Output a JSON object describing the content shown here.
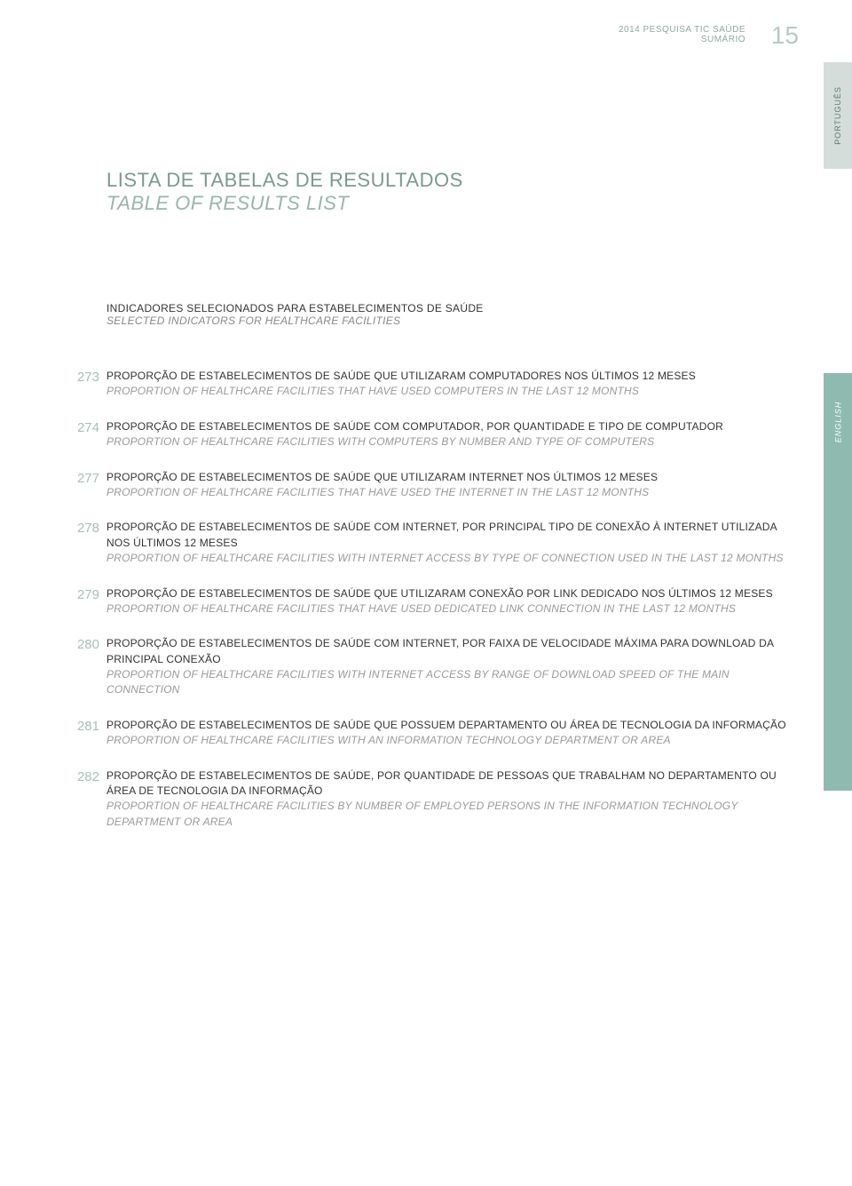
{
  "header": {
    "line1": "2014  PESQUISA TIC SAÚDE",
    "line2": "SUMÁRIO",
    "page_number": "15"
  },
  "tabs": {
    "portugues": "PORTUGUÊS",
    "english": "ENGLISH"
  },
  "main_title": {
    "pt": "LISTA DE TABELAS DE RESULTADOS",
    "en": "TABLE OF RESULTS LIST"
  },
  "section": {
    "pt": "INDICADORES SELECIONADOS PARA ESTABELECIMENTOS DE SAÚDE",
    "en": "SELECTED INDICATORS FOR HEALTHCARE FACILITIES"
  },
  "entries": [
    {
      "num": "273",
      "pt": "PROPORÇÃO DE ESTABELECIMENTOS DE SAÚDE QUE UTILIZARAM COMPUTADORES NOS ÚLTIMOS 12 MESES",
      "en": "PROPORTION OF HEALTHCARE FACILITIES THAT HAVE USED COMPUTERS IN THE LAST 12 MONTHS"
    },
    {
      "num": "274",
      "pt": "PROPORÇÃO DE ESTABELECIMENTOS DE SAÚDE COM COMPUTADOR, POR QUANTIDADE E TIPO DE COMPUTADOR",
      "en": "PROPORTION OF HEALTHCARE FACILITIES WITH COMPUTERS BY NUMBER AND TYPE OF COMPUTERS"
    },
    {
      "num": "277",
      "pt": "PROPORÇÃO DE ESTABELECIMENTOS DE SAÚDE QUE UTILIZARAM INTERNET NOS ÚLTIMOS 12 MESES",
      "en": "PROPORTION OF HEALTHCARE FACILITIES THAT HAVE USED THE INTERNET IN THE LAST 12 MONTHS"
    },
    {
      "num": "278",
      "pt": "PROPORÇÃO DE ESTABELECIMENTOS DE SAÚDE COM INTERNET, POR PRINCIPAL TIPO DE CONEXÃO À INTERNET UTILIZADA NOS ÚLTIMOS 12 MESES",
      "en": "PROPORTION OF HEALTHCARE FACILITIES WITH INTERNET ACCESS BY TYPE OF CONNECTION USED IN THE LAST 12 MONTHS"
    },
    {
      "num": "279",
      "pt": "PROPORÇÃO DE ESTABELECIMENTOS DE SAÚDE QUE UTILIZARAM CONEXÃO POR LINK DEDICADO NOS ÚLTIMOS 12 MESES",
      "en": "PROPORTION OF HEALTHCARE FACILITIES THAT HAVE USED DEDICATED LINK CONNECTION IN THE LAST 12 MONTHS"
    },
    {
      "num": "280",
      "pt": "PROPORÇÃO DE ESTABELECIMENTOS DE SAÚDE COM INTERNET, POR FAIXA DE VELOCIDADE MÁXIMA PARA DOWNLOAD DA PRINCIPAL CONEXÃO",
      "en": "PROPORTION OF HEALTHCARE FACILITIES WITH INTERNET ACCESS BY RANGE OF DOWNLOAD SPEED OF THE MAIN CONNECTION"
    },
    {
      "num": "281",
      "pt": "PROPORÇÃO DE ESTABELECIMENTOS DE SAÚDE QUE POSSUEM DEPARTAMENTO OU ÁREA DE TECNOLOGIA DA INFORMAÇÃO",
      "en": "PROPORTION OF HEALTHCARE FACILITIES WITH AN INFORMATION TECHNOLOGY DEPARTMENT OR AREA"
    },
    {
      "num": "282",
      "pt": "PROPORÇÃO DE ESTABELECIMENTOS DE SAÚDE, POR QUANTIDADE DE PESSOAS QUE TRABALHAM NO DEPARTAMENTO OU ÁREA DE TECNOLOGIA DA INFORMAÇÃO",
      "en": "PROPORTION OF HEALTHCARE FACILITIES BY NUMBER OF EMPLOYED PERSONS IN THE INFORMATION TECHNOLOGY DEPARTMENT OR AREA"
    }
  ]
}
